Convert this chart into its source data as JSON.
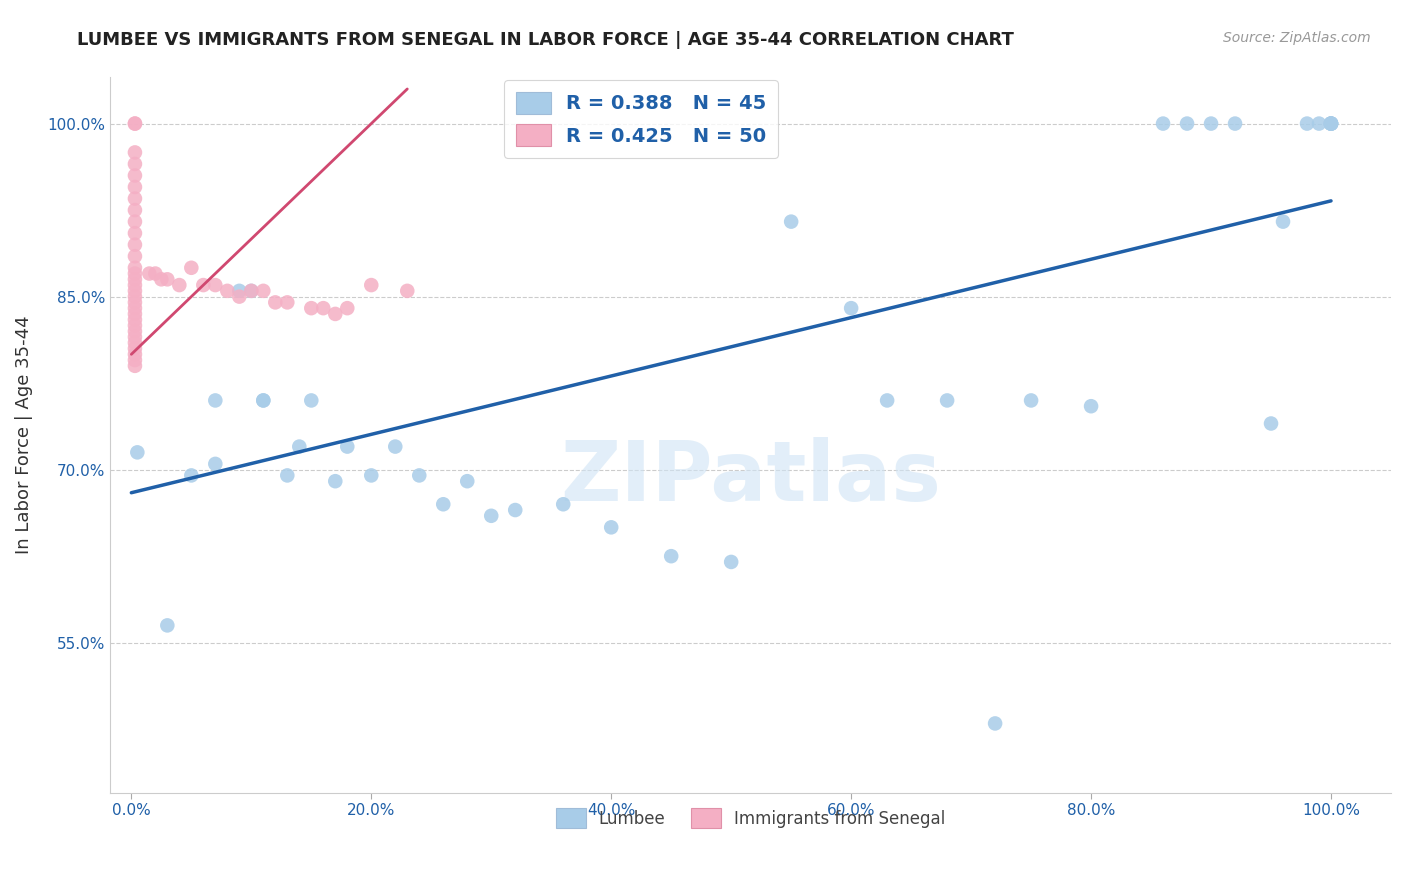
{
  "title": "LUMBEE VS IMMIGRANTS FROM SENEGAL IN LABOR FORCE | AGE 35-44 CORRELATION CHART",
  "source": "Source: ZipAtlas.com",
  "ylabel": "In Labor Force | Age 35-44",
  "watermark": "ZIPatlas",
  "bottom_legend": [
    "Lumbee",
    "Immigrants from Senegal"
  ],
  "blue_color": "#a8cce8",
  "pink_color": "#f4afc4",
  "blue_edge": "#7bafd4",
  "pink_edge": "#e87898",
  "trend_blue": "#2060a8",
  "trend_pink": "#d04870",
  "xmin": -0.018,
  "xmax": 1.05,
  "ymin": 0.42,
  "ymax": 1.04,
  "xticks": [
    0.0,
    0.2,
    0.4,
    0.6,
    0.8,
    1.0
  ],
  "xtick_labels": [
    "0.0%",
    "20.0%",
    "40.0%",
    "60.0%",
    "80.0%",
    "100.0%"
  ],
  "ytick_labels": [
    "55.0%",
    "70.0%",
    "85.0%",
    "100.0%"
  ],
  "ytick_vals": [
    0.55,
    0.7,
    0.85,
    1.0
  ],
  "blue_scatter_x": [
    0.005,
    0.03,
    0.05,
    0.07,
    0.07,
    0.09,
    0.1,
    0.11,
    0.11,
    0.13,
    0.14,
    0.15,
    0.17,
    0.18,
    0.2,
    0.22,
    0.24,
    0.26,
    0.28,
    0.3,
    0.32,
    0.36,
    0.4,
    0.45,
    0.5,
    0.55,
    0.6,
    0.63,
    0.68,
    0.72,
    0.75,
    0.8,
    0.86,
    0.88,
    0.9,
    0.92,
    0.95,
    0.96,
    0.98,
    0.99,
    1.0,
    1.0,
    1.0,
    1.0,
    1.0
  ],
  "blue_scatter_y": [
    0.715,
    0.565,
    0.695,
    0.705,
    0.76,
    0.855,
    0.855,
    0.76,
    0.76,
    0.695,
    0.72,
    0.76,
    0.69,
    0.72,
    0.695,
    0.72,
    0.695,
    0.67,
    0.69,
    0.66,
    0.665,
    0.67,
    0.65,
    0.625,
    0.62,
    0.915,
    0.84,
    0.76,
    0.76,
    0.48,
    0.76,
    0.755,
    1.0,
    1.0,
    1.0,
    1.0,
    0.74,
    0.915,
    1.0,
    1.0,
    1.0,
    1.0,
    1.0,
    1.0,
    1.0
  ],
  "pink_scatter_x": [
    0.003,
    0.003,
    0.003,
    0.003,
    0.003,
    0.003,
    0.003,
    0.003,
    0.003,
    0.003,
    0.003,
    0.003,
    0.003,
    0.003,
    0.003,
    0.003,
    0.003,
    0.003,
    0.003,
    0.003,
    0.003,
    0.003,
    0.003,
    0.003,
    0.003,
    0.003,
    0.003,
    0.003,
    0.003,
    0.003,
    0.015,
    0.02,
    0.025,
    0.03,
    0.04,
    0.05,
    0.06,
    0.07,
    0.08,
    0.09,
    0.1,
    0.11,
    0.12,
    0.13,
    0.15,
    0.16,
    0.17,
    0.18,
    0.2,
    0.23
  ],
  "pink_scatter_y": [
    1.0,
    1.0,
    0.975,
    0.965,
    0.955,
    0.945,
    0.935,
    0.925,
    0.915,
    0.905,
    0.895,
    0.885,
    0.875,
    0.87,
    0.865,
    0.86,
    0.855,
    0.85,
    0.845,
    0.84,
    0.835,
    0.83,
    0.825,
    0.82,
    0.815,
    0.81,
    0.805,
    0.8,
    0.795,
    0.79,
    0.87,
    0.87,
    0.865,
    0.865,
    0.86,
    0.875,
    0.86,
    0.86,
    0.855,
    0.85,
    0.855,
    0.855,
    0.845,
    0.845,
    0.84,
    0.84,
    0.835,
    0.84,
    0.86,
    0.855
  ],
  "blue_trend_x": [
    0.0,
    1.0
  ],
  "blue_trend_y": [
    0.68,
    0.933
  ],
  "pink_trend_x": [
    0.0,
    0.23
  ],
  "pink_trend_y": [
    0.8,
    1.03
  ],
  "grid_color": "#cccccc",
  "bg_color": "#ffffff",
  "title_fontsize": 13,
  "source_fontsize": 10,
  "tick_fontsize": 11,
  "ylabel_fontsize": 13,
  "watermark_fontsize": 60,
  "scatter_size": 110
}
